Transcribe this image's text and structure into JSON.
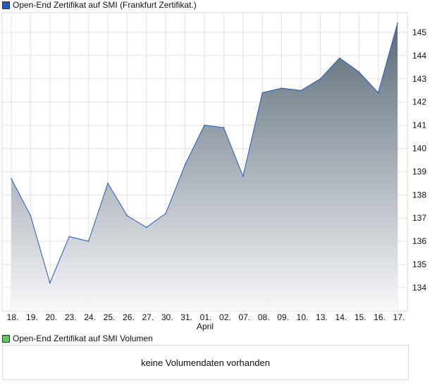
{
  "chart_data": {
    "type": "area",
    "title": "Open-End Zertifikat auf SMI  (Frankfurt Zertifikat.)",
    "legend_color": "#1f5bbf",
    "categories": [
      "18.",
      "19.",
      "20.",
      "23.",
      "24.",
      "25.",
      "26.",
      "27.",
      "30.",
      "31.",
      "01.",
      "02.",
      "07.",
      "08.",
      "09.",
      "10.",
      "13.",
      "14.",
      "15.",
      "16.",
      "17."
    ],
    "month_label": "April",
    "values": [
      138.7,
      137.1,
      134.2,
      136.2,
      136.0,
      138.5,
      137.1,
      136.6,
      137.2,
      139.3,
      141.0,
      140.9,
      138.8,
      142.4,
      142.6,
      142.5,
      143.0,
      143.9,
      143.3,
      142.4,
      145.4
    ],
    "yticks": [
      134,
      135,
      136,
      137,
      138,
      139,
      140,
      141,
      142,
      143,
      144,
      145
    ],
    "ylim": [
      132.9,
      145.9
    ],
    "grid": true,
    "line_color": "#1f5bbf",
    "fill_top": "#5a6a78",
    "fill_bottom": "#f8f8fa"
  },
  "volume": {
    "legend": "Open-End Zertifikat auf SMI  Volumen",
    "legend_color": "#5ec85e",
    "empty_text": "keine Volumendaten vorhanden"
  }
}
